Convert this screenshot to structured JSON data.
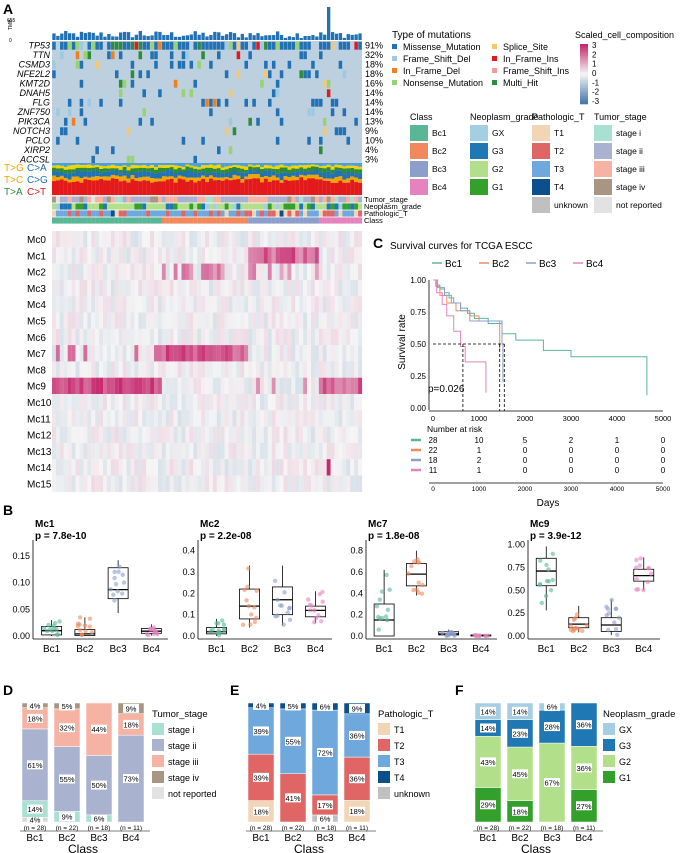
{
  "panel_labels": {
    "A": "A",
    "B": "B",
    "C": "C",
    "D": "D",
    "E": "E",
    "F": "F"
  },
  "tmb_label": "TMB",
  "tmb_max": "655",
  "tmb_min": "0",
  "genes": [
    {
      "name": "TP53",
      "pct": "91%"
    },
    {
      "name": "TTN",
      "pct": "32%"
    },
    {
      "name": "CSMD3",
      "pct": "18%"
    },
    {
      "name": "NFE2L2",
      "pct": "18%"
    },
    {
      "name": "KMT2D",
      "pct": "16%"
    },
    {
      "name": "DNAH5",
      "pct": "14%"
    },
    {
      "name": "FLG",
      "pct": "14%"
    },
    {
      "name": "ZNF750",
      "pct": "14%"
    },
    {
      "name": "PIK3CA",
      "pct": "13%"
    },
    {
      "name": "NOTCH3",
      "pct": "9%"
    },
    {
      "name": "PCLO",
      "pct": "10%"
    },
    {
      "name": "XIRP2",
      "pct": "4%"
    },
    {
      "name": "ACCSL",
      "pct": "3%"
    }
  ],
  "substitutions": [
    "T>G",
    "C>A",
    "T>C",
    "C>G",
    "T>A",
    "C>T"
  ],
  "annotation_tracks": [
    "Tumor_stage",
    "Neoplasm_grade",
    "Pathologic_T",
    "Class"
  ],
  "mc_rows": [
    "Mc0",
    "Mc1",
    "Mc2",
    "Mc3",
    "Mc4",
    "Mc5",
    "Mc6",
    "Mc7",
    "Mc8",
    "Mc9",
    "Mc10",
    "Mc11",
    "Mc12",
    "Mc13",
    "Mc14",
    "Mc15"
  ],
  "legend_mutation": {
    "title": "Type of mutations",
    "items": [
      {
        "label": "Missense_Mutation",
        "color": "#2271b5"
      },
      {
        "label": "Splice_Site",
        "color": "#f5c86e"
      },
      {
        "label": "Frame_Shift_Del",
        "color": "#9ecae1"
      },
      {
        "label": "In_Frame_Ins",
        "color": "#e31a1c"
      },
      {
        "label": "In_Frame_Del",
        "color": "#f07f22"
      },
      {
        "label": "Frame_Shift_Ins",
        "color": "#fb9a99"
      },
      {
        "label": "Nonsense_Mutation",
        "color": "#98d36f"
      },
      {
        "label": "Multi_Hit",
        "color": "#2e8b3c"
      }
    ]
  },
  "legend_scaled": {
    "title": "Scaled_cell_composition",
    "ticks": [
      "3",
      "2",
      "1",
      "0",
      "-1",
      "-2",
      "-3"
    ]
  },
  "legend_class": {
    "title": "Class",
    "items": [
      {
        "label": "Bc1",
        "color": "#5ab796"
      },
      {
        "label": "Bc2",
        "color": "#f08a5d"
      },
      {
        "label": "Bc3",
        "color": "#8c9fcb"
      },
      {
        "label": "Bc4",
        "color": "#e583bf"
      }
    ]
  },
  "legend_grade": {
    "title": "Neoplasm_grade",
    "items": [
      {
        "label": "GX",
        "color": "#a6cee3"
      },
      {
        "label": "G3",
        "color": "#1f78b4"
      },
      {
        "label": "G2",
        "color": "#b2df8a"
      },
      {
        "label": "G1",
        "color": "#33a02c"
      }
    ]
  },
  "legend_pathT": {
    "title": "Pathologic_T",
    "items": [
      {
        "label": "T1",
        "color": "#f2d5b5"
      },
      {
        "label": "T2",
        "color": "#e06666"
      },
      {
        "label": "T3",
        "color": "#6fa8dc"
      },
      {
        "label": "T4",
        "color": "#0b4f8c"
      },
      {
        "label": "unknown",
        "color": "#c0c0c0"
      }
    ]
  },
  "legend_stage": {
    "title": "Tumor_stage",
    "items": [
      {
        "label": "stage i",
        "color": "#a8e0d1"
      },
      {
        "label": "stage ii",
        "color": "#a9b3cf"
      },
      {
        "label": "stage iii",
        "color": "#f6b2a2"
      },
      {
        "label": "stage iv",
        "color": "#a89682"
      },
      {
        "label": "not reported",
        "color": "#e2e2e2"
      }
    ]
  },
  "survival": {
    "title": "Survival curves for TCGA ESCC",
    "ylabel": "Survival rate",
    "xlabel": "Days",
    "pvalue": "p=0.026",
    "yticks": [
      "1.00",
      "0.75",
      "0.50",
      "0.25",
      "0.00"
    ],
    "xticks": [
      "0",
      "1000",
      "2000",
      "3000",
      "4000",
      "5000"
    ],
    "risk_title": "Number at risk",
    "groups": [
      {
        "label": "Bc1",
        "color": "#5ab796",
        "risk": [
          "28",
          "10",
          "5",
          "2",
          "1",
          "0"
        ]
      },
      {
        "label": "Bc2",
        "color": "#f08a5d",
        "risk": [
          "22",
          "1",
          "0",
          "0",
          "0",
          "0"
        ]
      },
      {
        "label": "Bc3",
        "color": "#8c9fcb",
        "risk": [
          "18",
          "2",
          "0",
          "0",
          "0",
          "0"
        ]
      },
      {
        "label": "Bc4",
        "color": "#e583bf",
        "risk": [
          "11",
          "1",
          "0",
          "0",
          "0",
          "0"
        ]
      }
    ]
  },
  "chart_data": [
    {
      "type": "box",
      "title": "Mc1",
      "pvalue": "p = 7.8e-10",
      "categories": [
        "Bc1",
        "Bc2",
        "Bc3",
        "Bc4"
      ],
      "yticks": [
        "0.00",
        "0.05",
        "0.10",
        "0.15"
      ],
      "ylim": [
        0,
        0.18
      ],
      "boxes": [
        [
          0,
          0.002,
          0.01,
          0.018,
          0.03
        ],
        [
          0,
          0.001,
          0.004,
          0.012,
          0.035
        ],
        [
          0.043,
          0.07,
          0.087,
          0.128,
          0.142
        ],
        [
          0.001,
          0.005,
          0.009,
          0.014,
          0.022
        ]
      ]
    },
    {
      "type": "box",
      "title": "Mc2",
      "pvalue": "p = 2.2e-08",
      "categories": [
        "Bc1",
        "Bc2",
        "Bc3",
        "Bc4"
      ],
      "yticks": [
        "0.0",
        "0.1",
        "0.2",
        "0.3",
        "0.4"
      ],
      "ylim": [
        0,
        0.45
      ],
      "boxes": [
        [
          0,
          0.01,
          0.02,
          0.04,
          0.08
        ],
        [
          0.04,
          0.08,
          0.14,
          0.22,
          0.33
        ],
        [
          0.05,
          0.1,
          0.17,
          0.23,
          0.33
        ],
        [
          0.06,
          0.09,
          0.12,
          0.14,
          0.21
        ]
      ]
    },
    {
      "type": "box",
      "title": "Mc7",
      "pvalue": "p = 1.8e-08",
      "categories": [
        "Bc1",
        "Bc2",
        "Bc3",
        "Bc4"
      ],
      "yticks": [
        "0.0",
        "0.2",
        "0.4",
        "0.6",
        "0.8"
      ],
      "ylim": [
        0,
        0.9
      ],
      "boxes": [
        [
          0,
          0,
          0.15,
          0.3,
          0.62
        ],
        [
          0.38,
          0.47,
          0.58,
          0.68,
          0.8
        ],
        [
          0,
          0.01,
          0.02,
          0.04,
          0.06
        ],
        [
          0,
          0,
          0.005,
          0.01,
          0.01
        ]
      ]
    },
    {
      "type": "box",
      "title": "Mc9",
      "pvalue": "p = 3.9e-12",
      "categories": [
        "Bc1",
        "Bc2",
        "Bc3",
        "Bc4"
      ],
      "yticks": [
        "0.00",
        "0.25",
        "0.50",
        "0.75",
        "1.00"
      ],
      "ylim": [
        0,
        1.05
      ],
      "boxes": [
        [
          0.28,
          0.55,
          0.71,
          0.85,
          0.98
        ],
        [
          0.04,
          0.09,
          0.13,
          0.2,
          0.33
        ],
        [
          0.01,
          0.05,
          0.12,
          0.2,
          0.4
        ],
        [
          0.5,
          0.6,
          0.66,
          0.73,
          0.86
        ]
      ]
    },
    {
      "type": "stacked_bar",
      "xlabel": "Class",
      "categories": [
        "Bc1",
        "Bc2",
        "Bc3",
        "Bc4"
      ],
      "n_labels": [
        "(n = 28)",
        "(n = 22)",
        "(n = 18)",
        "(n = 11)"
      ],
      "legend_title": "Tumor_stage",
      "series": [
        {
          "name": "not reported",
          "values": [
            4,
            0,
            0,
            0
          ],
          "labels": [
            "4%",
            "",
            "",
            ""
          ]
        },
        {
          "name": "stage i",
          "values": [
            14,
            9,
            6,
            0
          ],
          "labels": [
            "14%",
            "9%",
            "6%",
            ""
          ]
        },
        {
          "name": "stage ii",
          "values": [
            61,
            55,
            50,
            73
          ],
          "labels": [
            "61%",
            "55%",
            "50%",
            "73%"
          ]
        },
        {
          "name": "stage iii",
          "values": [
            18,
            32,
            44,
            18
          ],
          "labels": [
            "18%",
            "32%",
            "44%",
            "18%"
          ]
        },
        {
          "name": "stage iv",
          "values": [
            4,
            5,
            0,
            9
          ],
          "labels": [
            "4%",
            "5%",
            "",
            "9%"
          ]
        }
      ]
    },
    {
      "type": "stacked_bar",
      "xlabel": "Class",
      "categories": [
        "Bc1",
        "Bc2",
        "Bc3",
        "Bc4"
      ],
      "n_labels": [
        "(n = 28)",
        "(n = 22)",
        "(n = 18)",
        "(n = 11)"
      ],
      "legend_title": "Pathologic_T",
      "series": [
        {
          "name": "T1",
          "values": [
            18,
            0,
            0,
            18
          ],
          "labels": [
            "18%",
            "",
            "",
            "18%"
          ]
        },
        {
          "name": "unknown",
          "values": [
            0,
            0,
            6,
            0
          ],
          "labels": [
            "",
            "",
            "6%",
            ""
          ]
        },
        {
          "name": "T2",
          "values": [
            39,
            41,
            17,
            36
          ],
          "labels": [
            "39%",
            "41%",
            "17%",
            "36%"
          ]
        },
        {
          "name": "T3",
          "values": [
            39,
            55,
            72,
            36
          ],
          "labels": [
            "39%",
            "55%",
            "72%",
            "36%"
          ]
        },
        {
          "name": "T4",
          "values": [
            4,
            5,
            6,
            9
          ],
          "labels": [
            "4%",
            "5%",
            "6%",
            "9%"
          ]
        }
      ]
    },
    {
      "type": "stacked_bar",
      "xlabel": "Class",
      "categories": [
        "Bc1",
        "Bc2",
        "Bc3",
        "Bc4"
      ],
      "n_labels": [
        "(n = 28)",
        "(n = 22)",
        "(n = 18)",
        "(n = 11)"
      ],
      "legend_title": "Neoplasm_grade",
      "series": [
        {
          "name": "G1",
          "values": [
            29,
            18,
            0,
            27
          ],
          "labels": [
            "29%",
            "18%",
            "",
            "27%"
          ]
        },
        {
          "name": "G2",
          "values": [
            43,
            45,
            67,
            36
          ],
          "labels": [
            "43%",
            "45%",
            "67%",
            "36%"
          ]
        },
        {
          "name": "G3",
          "values": [
            14,
            23,
            28,
            36
          ],
          "labels": [
            "14%",
            "23%",
            "28%",
            "36%"
          ]
        },
        {
          "name": "GX",
          "values": [
            14,
            14,
            6,
            0
          ],
          "labels": [
            "14%",
            "14%",
            "6%",
            ""
          ]
        }
      ]
    }
  ]
}
